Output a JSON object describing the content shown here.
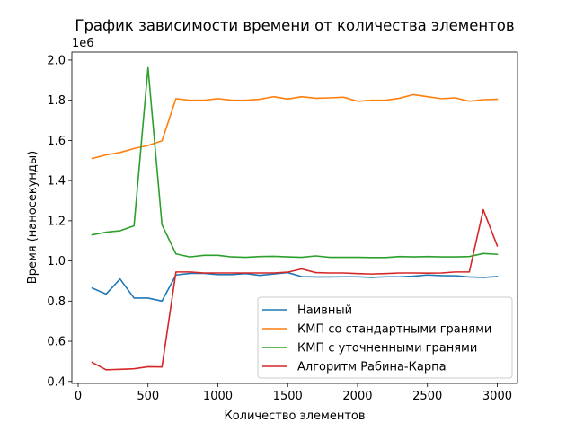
{
  "chart_data": {
    "type": "line",
    "title": "График зависимости времени от количества элементов",
    "xlabel": "Количество элементов",
    "ylabel": "Время (наносекунды)",
    "y_offset_label": "1e6",
    "xlim": [
      -45,
      3145
    ],
    "ylim": [
      0.39,
      2.04
    ],
    "x_ticks": [
      0,
      500,
      1000,
      1500,
      2000,
      2500,
      3000
    ],
    "x_tick_labels": [
      "0",
      "500",
      "1000",
      "1500",
      "2000",
      "2500",
      "3000"
    ],
    "y_ticks": [
      0.4,
      0.6,
      0.8,
      1.0,
      1.2,
      1.4,
      1.6,
      1.8,
      2.0
    ],
    "y_tick_labels": [
      "0.4",
      "0.6",
      "0.8",
      "1.0",
      "1.2",
      "1.4",
      "1.6",
      "1.8",
      "2.0"
    ],
    "grid": false,
    "legend_position": "lower-right",
    "x": [
      100,
      200,
      300,
      400,
      500,
      600,
      700,
      800,
      900,
      1000,
      1100,
      1200,
      1300,
      1400,
      1500,
      1600,
      1700,
      1800,
      1900,
      2000,
      2100,
      2200,
      2300,
      2400,
      2500,
      2600,
      2700,
      2800,
      2900,
      3000
    ],
    "series": [
      {
        "name": "Наивный",
        "color": "#1f77b4",
        "values": [
          0.865,
          0.835,
          0.91,
          0.815,
          0.815,
          0.8,
          0.93,
          0.938,
          0.938,
          0.932,
          0.932,
          0.937,
          0.928,
          0.935,
          0.942,
          0.922,
          0.92,
          0.92,
          0.921,
          0.921,
          0.918,
          0.921,
          0.921,
          0.924,
          0.93,
          0.927,
          0.926,
          0.92,
          0.918,
          0.922
        ]
      },
      {
        "name": "КМП со стандартными гранями",
        "color": "#ff7f0e",
        "values": [
          1.51,
          1.528,
          1.54,
          1.56,
          1.575,
          1.598,
          1.808,
          1.8,
          1.8,
          1.808,
          1.8,
          1.8,
          1.805,
          1.818,
          1.806,
          1.818,
          1.81,
          1.812,
          1.815,
          1.795,
          1.8,
          1.8,
          1.81,
          1.828,
          1.818,
          1.808,
          1.812,
          1.795,
          1.803,
          1.805
        ]
      },
      {
        "name": "КМП с уточненными гранями",
        "color": "#2ca02c",
        "values": [
          1.13,
          1.143,
          1.15,
          1.175,
          1.962,
          1.18,
          1.035,
          1.02,
          1.028,
          1.028,
          1.02,
          1.018,
          1.022,
          1.023,
          1.02,
          1.018,
          1.025,
          1.018,
          1.018,
          1.018,
          1.017,
          1.017,
          1.022,
          1.02,
          1.022,
          1.02,
          1.02,
          1.022,
          1.037,
          1.033
        ]
      },
      {
        "name": "Алгоритм Рабина-Карпа",
        "color": "#d62728",
        "values": [
          0.495,
          0.458,
          0.46,
          0.463,
          0.473,
          0.472,
          0.945,
          0.945,
          0.94,
          0.94,
          0.94,
          0.94,
          0.94,
          0.94,
          0.944,
          0.96,
          0.942,
          0.94,
          0.94,
          0.937,
          0.935,
          0.937,
          0.94,
          0.94,
          0.939,
          0.94,
          0.945,
          0.945,
          1.255,
          1.075
        ]
      }
    ]
  }
}
